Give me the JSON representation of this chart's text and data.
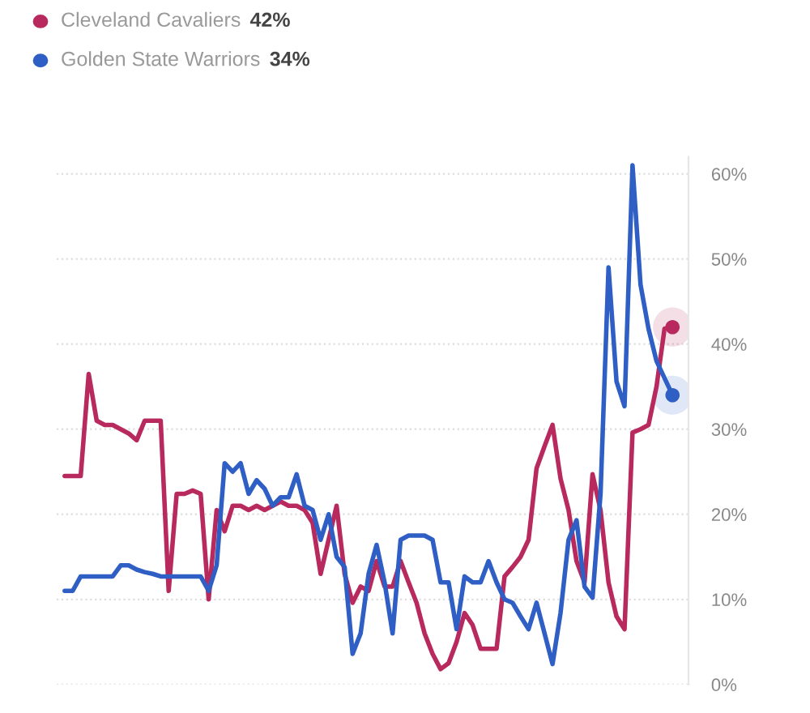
{
  "chart_data": {
    "type": "line",
    "categories": [
      null,
      null,
      null,
      null,
      null,
      null,
      null,
      null,
      null,
      null,
      null,
      null,
      null,
      null,
      null,
      null,
      null,
      null,
      null,
      null,
      null,
      null,
      null,
      null,
      null,
      null,
      null,
      null,
      null,
      null,
      null,
      null,
      null,
      null,
      null,
      null,
      null,
      null,
      null,
      null,
      null,
      null,
      null,
      null,
      null,
      null,
      null,
      null,
      null,
      null,
      null,
      null,
      null,
      null,
      null,
      null,
      null,
      null,
      null,
      null,
      null,
      null,
      null,
      null,
      null,
      null,
      null,
      null,
      null,
      null,
      null,
      null,
      null,
      null,
      null,
      null,
      null
    ],
    "series": [
      {
        "name": "Cleveland Cavaliers",
        "color": "#b8295e",
        "values": [
          24.5,
          24.5,
          24.5,
          36.5,
          31,
          30.5,
          30.5,
          30,
          29.5,
          28.7,
          31,
          31,
          31,
          11,
          22.4,
          22.4,
          22.8,
          22.4,
          10,
          20.5,
          18,
          21,
          21,
          20.5,
          21,
          20.5,
          21,
          21.5,
          21,
          21,
          20.5,
          19,
          13,
          17,
          21,
          13,
          9.6,
          11.5,
          11,
          14.5,
          11.5,
          11.5,
          14.5,
          12,
          9.6,
          6,
          3.6,
          1.8,
          2.5,
          5,
          8.4,
          7,
          4.2,
          4.2,
          4.2,
          12.7,
          13.8,
          15,
          17,
          25.4,
          28,
          30.5,
          24.2,
          20.5,
          14.5,
          12,
          24.7,
          20.5,
          12,
          8,
          6.5,
          29.6,
          30,
          30.5,
          35,
          41.8,
          42
        ]
      },
      {
        "name": "Golden State Warriors",
        "color": "#2f5fc4",
        "values": [
          11,
          11,
          12.7,
          12.7,
          12.7,
          12.7,
          12.7,
          14,
          14,
          13.5,
          13.2,
          13,
          12.7,
          12.7,
          12.7,
          12.7,
          12.7,
          12.7,
          11,
          14,
          26,
          25,
          26,
          22.4,
          24,
          23,
          21,
          22,
          22,
          24.7,
          21,
          20.5,
          17,
          20,
          15,
          13.8,
          3.6,
          6,
          13,
          16.4,
          12,
          6,
          17,
          17.5,
          17.5,
          17.5,
          17,
          12,
          12,
          6.5,
          12.7,
          12,
          12,
          14.5,
          12,
          10,
          9.6,
          8,
          6.5,
          9.6,
          6,
          2.4,
          8.4,
          17,
          19.3,
          11.5,
          10.2,
          22.4,
          49,
          35.6,
          32.7,
          61,
          47,
          41.8,
          38,
          36,
          34
        ]
      }
    ],
    "annotations": [
      "42%",
      "34%"
    ],
    "ylim": [
      0,
      62
    ],
    "yticks": [
      {
        "value": 0,
        "label": "0%"
      },
      {
        "value": 10,
        "label": "10%"
      },
      {
        "value": 20,
        "label": "20%"
      },
      {
        "value": 30,
        "label": "30%"
      },
      {
        "value": 40,
        "label": "40%"
      },
      {
        "value": 50,
        "label": "50%"
      },
      {
        "value": 60,
        "label": "60%"
      }
    ],
    "grid": "y",
    "legend": "top left"
  }
}
